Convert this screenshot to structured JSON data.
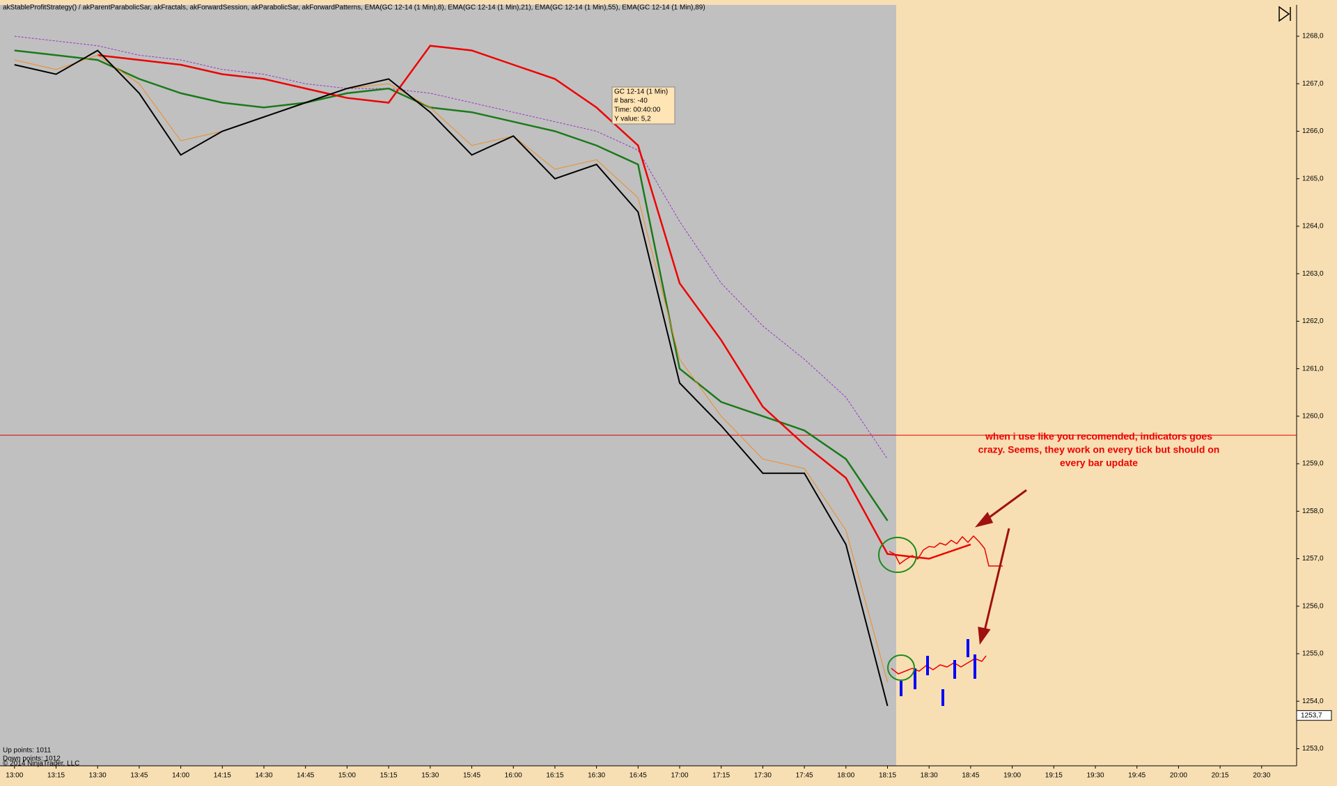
{
  "chart_data": {
    "type": "line",
    "title": "akStableProfitStrategy() / akParentParabolicSar, akFractals, akForwardSession, akParabolicSar, akForwardPatterns, EMA(GC 12-14 (1 Min),8), EMA(GC 12-14 (1 Min),21), EMA(GC 12-14 (1 Min),55), EMA(GC 12-14 (1 Min),89)",
    "categories": [
      "13:00",
      "13:15",
      "13:30",
      "13:45",
      "14:00",
      "14:15",
      "14:30",
      "14:45",
      "15:00",
      "15:15",
      "15:30",
      "15:45",
      "16:00",
      "16:15",
      "16:30",
      "16:45",
      "17:00",
      "17:15",
      "17:30",
      "17:45",
      "18:00",
      "18:15",
      "18:30",
      "18:45",
      "19:00",
      "19:15",
      "19:30",
      "19:45",
      "20:00",
      "20:15",
      "20:30"
    ],
    "series": [
      {
        "color": "#9932cc",
        "values": [
          1268.0,
          1267.9,
          1267.8,
          1267.6,
          1267.5,
          1267.3,
          1267.2,
          1267.0,
          1266.9,
          1266.9,
          1266.8,
          1266.6,
          1266.4,
          1266.2,
          1266.0,
          1265.6,
          1264.1,
          1262.8,
          1261.9,
          1261.2,
          1260.4,
          1259.1,
          null,
          null,
          null,
          null,
          null,
          null,
          null,
          null,
          null
        ]
      },
      {
        "color": "#1a7a1a",
        "values": [
          1267.7,
          1267.6,
          1267.5,
          1267.1,
          1266.8,
          1266.6,
          1266.5,
          1266.6,
          1266.8,
          1266.9,
          1266.5,
          1266.4,
          1266.2,
          1266.0,
          1265.7,
          1265.3,
          1261.0,
          1260.3,
          1260.0,
          1259.7,
          1259.1,
          1257.8,
          null,
          null,
          null,
          null,
          null,
          null,
          null,
          null,
          null
        ]
      },
      {
        "color": "#ee0000",
        "values": [
          null,
          null,
          1267.6,
          1267.5,
          1267.4,
          1267.2,
          1267.1,
          1266.9,
          1266.7,
          1266.6,
          1267.8,
          1267.7,
          1267.4,
          1267.1,
          1266.5,
          1265.7,
          1262.8,
          1261.6,
          1260.2,
          1259.4,
          1258.7,
          1257.1,
          1257.0,
          1257.3,
          null,
          null,
          null,
          null,
          null,
          null,
          null
        ]
      },
      {
        "color": "#f08c1e",
        "values": [
          1267.5,
          1267.3,
          1267.6,
          1267.0,
          1265.8,
          1266.0,
          1266.3,
          1266.6,
          1266.9,
          1267.0,
          1266.5,
          1265.7,
          1265.9,
          1265.2,
          1265.4,
          1264.6,
          1261.2,
          1260.0,
          1259.1,
          1258.9,
          1257.6,
          1254.4,
          null,
          null,
          null,
          null,
          null,
          null,
          null,
          null,
          null
        ]
      },
      {
        "color": "#000000",
        "values": [
          1267.4,
          1267.2,
          1267.7,
          1266.8,
          1265.5,
          1266.0,
          1266.3,
          1266.6,
          1266.9,
          1267.1,
          1266.4,
          1265.5,
          1265.9,
          1265.0,
          1265.3,
          1264.3,
          1260.7,
          1259.8,
          1258.8,
          1258.8,
          1257.3,
          1253.9,
          null,
          null,
          null,
          null,
          null,
          null,
          null,
          null,
          null
        ]
      }
    ],
    "ylim": [
      1252.64,
      1268.66
    ],
    "yticks": [
      {
        "value": 1253,
        "label": "1253,0"
      },
      {
        "value": 1254,
        "label": "1254,0"
      },
      {
        "value": 1255,
        "label": "1255,0"
      },
      {
        "value": 1256,
        "label": "1256,0"
      },
      {
        "value": 1257,
        "label": "1257,0"
      },
      {
        "value": 1258,
        "label": "1258,0"
      },
      {
        "value": 1259,
        "label": "1259,0"
      },
      {
        "value": 1260,
        "label": "1260,0"
      },
      {
        "value": 1261,
        "label": "1261,0"
      },
      {
        "value": 1262,
        "label": "1262,0"
      },
      {
        "value": 1263,
        "label": "1263,0"
      },
      {
        "value": 1264,
        "label": "1264,0"
      },
      {
        "value": 1265,
        "label": "1265,0"
      },
      {
        "value": 1266,
        "label": "1266,0"
      },
      {
        "value": 1267,
        "label": "1267,0"
      },
      {
        "value": 1268,
        "label": "1268,0"
      }
    ],
    "hline": 1259.6,
    "last_price": {
      "value": 1253.7,
      "label": "1253,7"
    },
    "tooltip": [
      "GC 12-14 (1 Min)",
      "# bars:   -40",
      "Time:     00:40:00",
      "Y value: 5,2"
    ],
    "annotation": [
      "when i use like you recomended, indicators goes",
      "crazy. Seems, they work on every tick but should on",
      "every bar update"
    ],
    "footer": [
      "Up points: 1011",
      "Down points: 1012",
      "© 2014 NinjaTrader, LLC"
    ]
  }
}
